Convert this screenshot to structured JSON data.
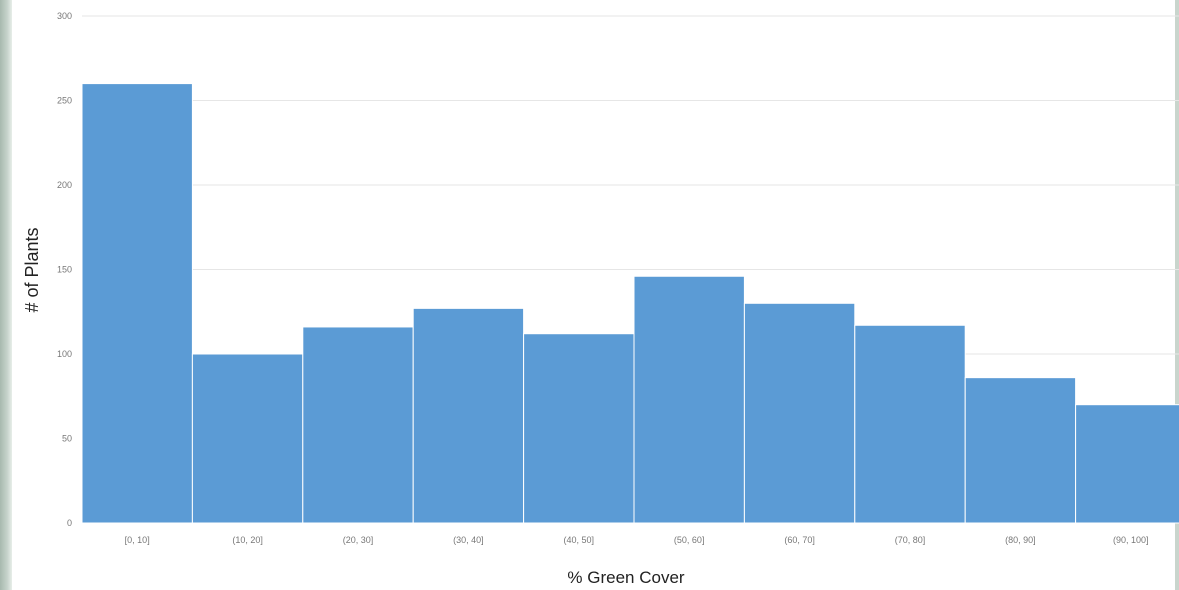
{
  "chart_data": {
    "type": "bar",
    "title": "",
    "xlabel": "% Green Cover",
    "ylabel": "# of Plants",
    "categories": [
      "[0, 10]",
      "(10, 20]",
      "(20, 30]",
      "(30, 40]",
      "(40, 50]",
      "(50, 60]",
      "(60, 70]",
      "(70, 80]",
      "(80, 90]",
      "(90, 100]"
    ],
    "values": [
      260,
      100,
      116,
      127,
      112,
      146,
      130,
      117,
      86,
      70
    ],
    "ylim": [
      0,
      300
    ],
    "yticks": [
      "0",
      "50",
      "100",
      "150",
      "200",
      "250",
      "300"
    ],
    "grid": true,
    "legend": "none",
    "colors": {
      "bar": "#5b9bd5",
      "bar_edge": "#ffffff",
      "gridline": "#e6e6e6"
    }
  }
}
